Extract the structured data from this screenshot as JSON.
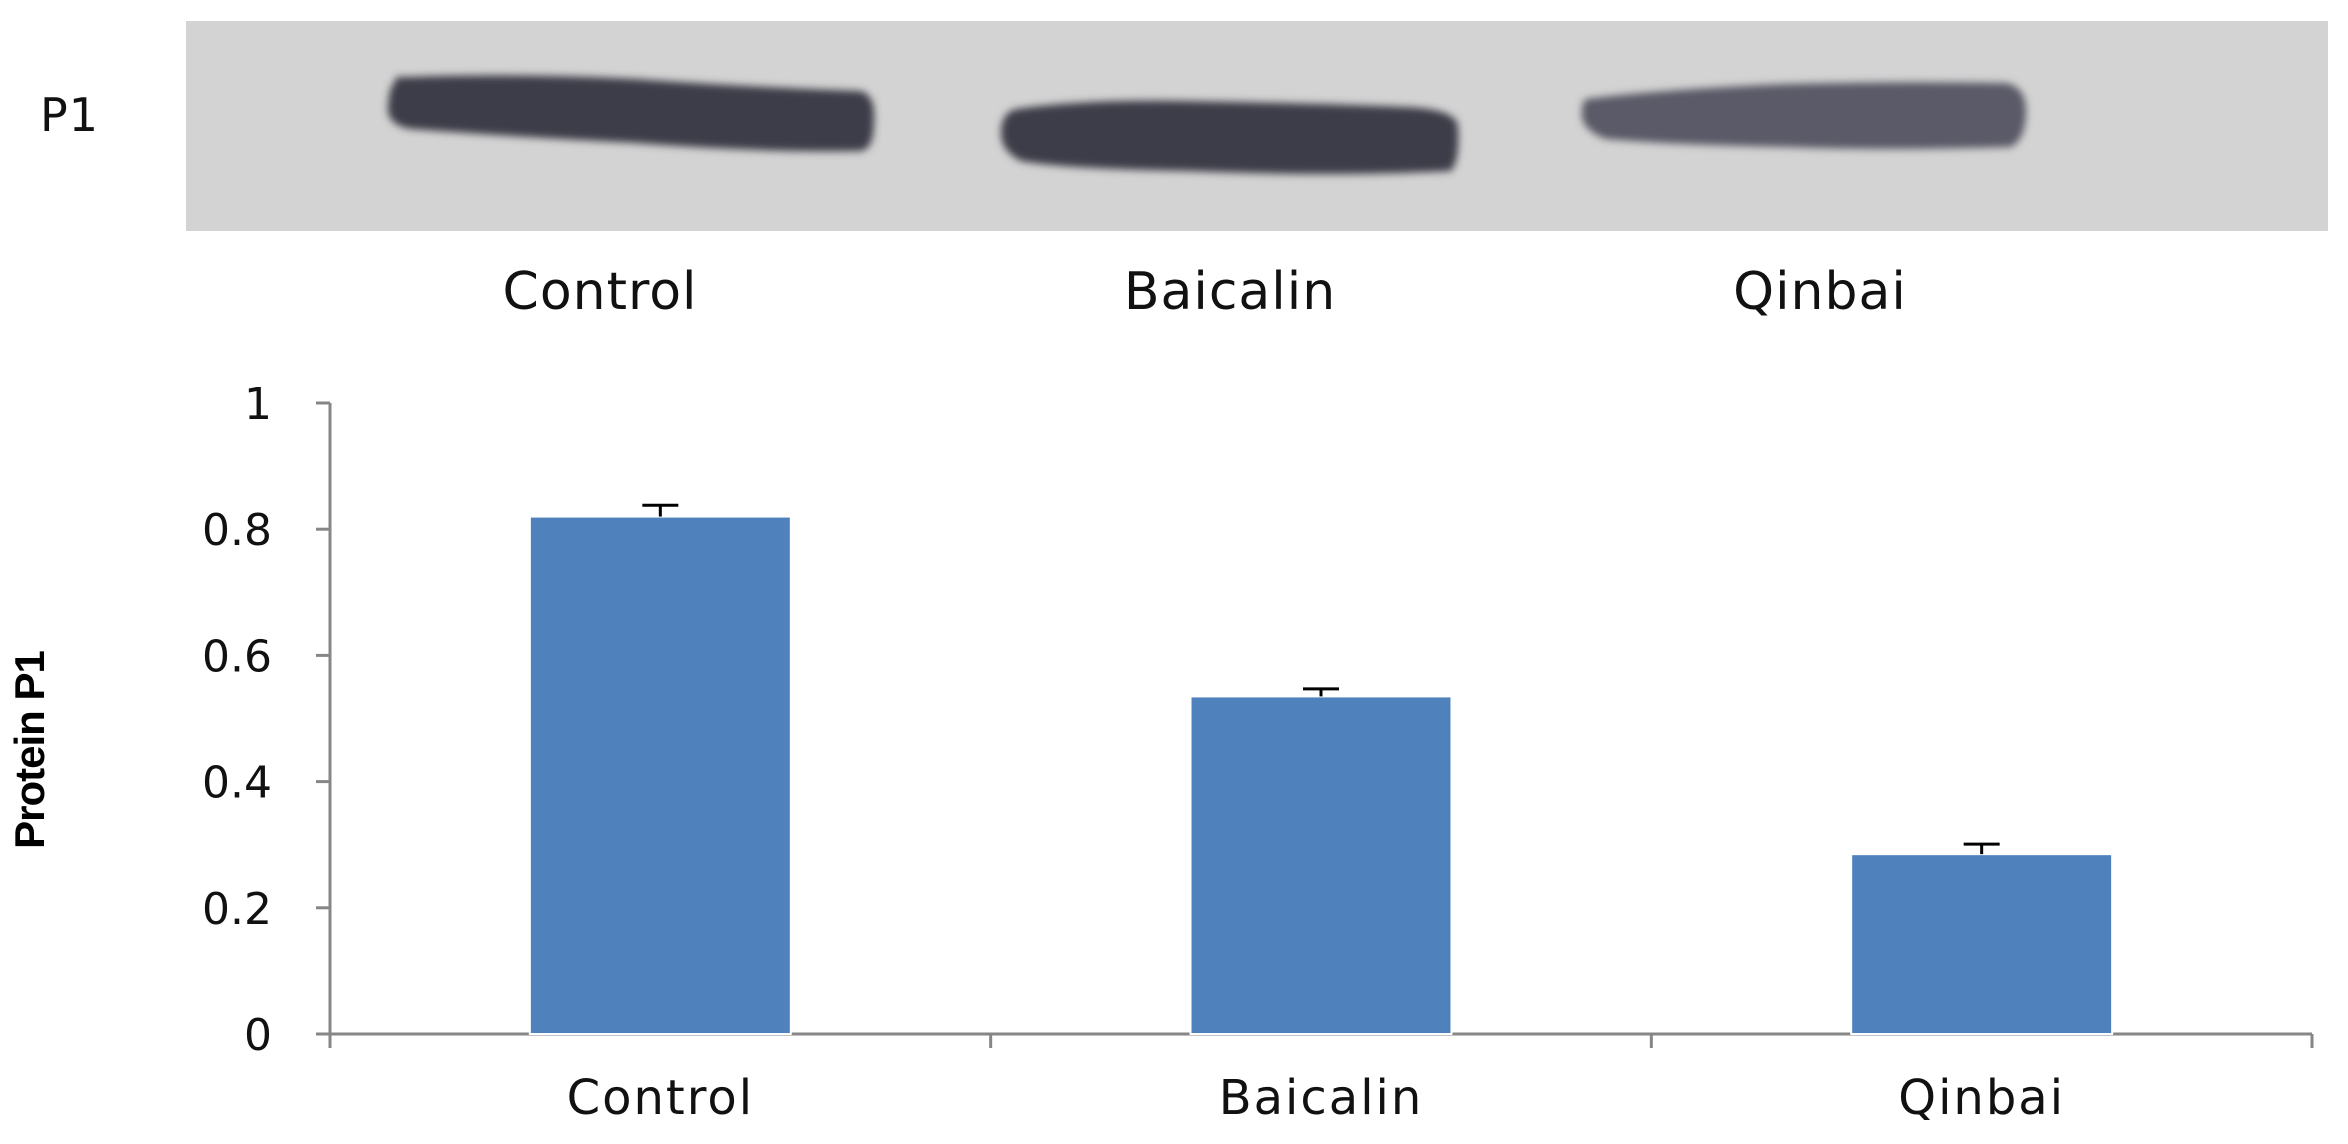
{
  "blot": {
    "label": "P1",
    "lanes": [
      "Control",
      "Baicalin",
      "Qinbai"
    ]
  },
  "chart_data": {
    "type": "bar",
    "categories": [
      "Control",
      "Baicalin",
      "Qinbai"
    ],
    "values": [
      0.82,
      0.535,
      0.285
    ],
    "errors": [
      0.018,
      0.012,
      0.016
    ],
    "ylabel": "Protein P1",
    "xlabel": "",
    "ylim": [
      0,
      1
    ],
    "yticks": [
      "0",
      "0.2",
      "0.4",
      "0.6",
      "0.8",
      "1"
    ],
    "grid": false,
    "legend": "none",
    "bar_color": "#4f81bd",
    "axis_color": "#868686"
  }
}
